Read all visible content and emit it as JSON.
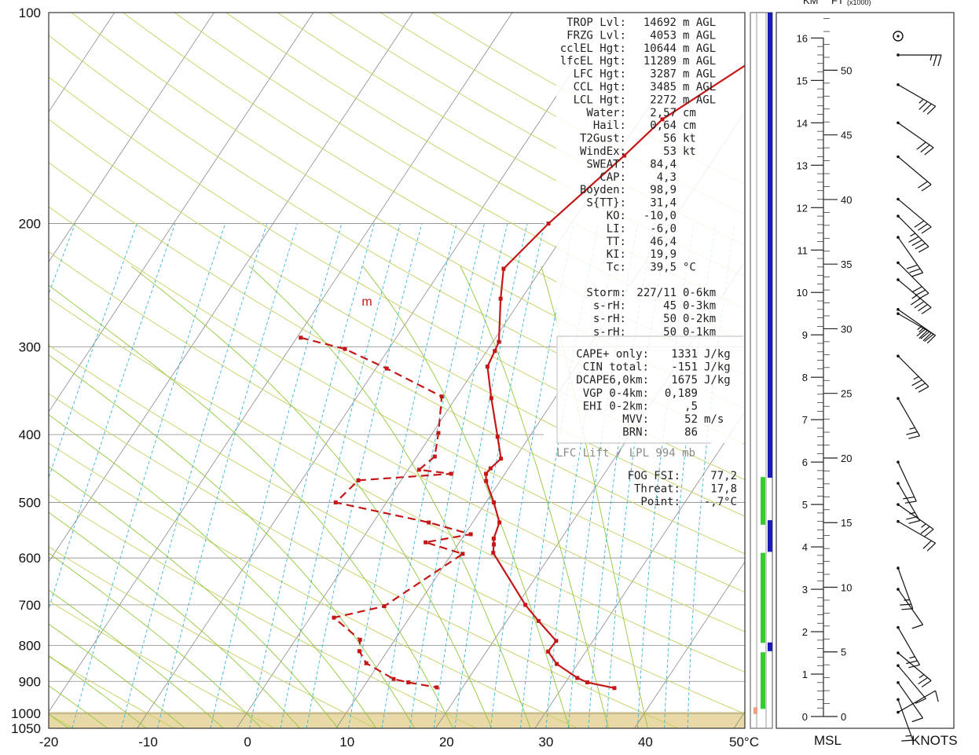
{
  "chart_data": {
    "type": "line",
    "title": "",
    "xlabel": "°C",
    "ylabel": "",
    "x_ticks": [
      -20,
      -10,
      0,
      10,
      20,
      30,
      40,
      50
    ],
    "x_tick_labels": [
      "-20",
      "-10",
      "0",
      "10",
      "20",
      "30",
      "40",
      "50°C"
    ],
    "xlim": [
      -20,
      50
    ],
    "ylim_hpa": [
      1050,
      100
    ],
    "y_scale": "log",
    "p_ticks": [
      100,
      200,
      300,
      400,
      500,
      600,
      700,
      800,
      900,
      1000,
      1050
    ],
    "grid": true,
    "series": [
      {
        "key": "temperature",
        "style": "solid",
        "color": "#c41818",
        "points": [
          [
            11.4,
            100
          ],
          [
            10.8,
            103
          ],
          [
            2.2,
            142
          ],
          [
            0.8,
            160
          ],
          [
            -2.3,
            200
          ],
          [
            -3.8,
            232
          ],
          [
            -2.1,
            256
          ],
          [
            0.6,
            295
          ],
          [
            0.8,
            304
          ],
          [
            1.1,
            320
          ],
          [
            3.6,
            355
          ],
          [
            6.8,
            403
          ],
          [
            8.6,
            433
          ],
          [
            8.2,
            447
          ],
          [
            8.1,
            455
          ],
          [
            8.6,
            466
          ],
          [
            10.8,
            500
          ],
          [
            12.7,
            534
          ],
          [
            13.2,
            563
          ],
          [
            13.6,
            574
          ],
          [
            14.1,
            590
          ],
          [
            20.8,
            700
          ],
          [
            23.2,
            738
          ],
          [
            26.3,
            788
          ],
          [
            26.2,
            816
          ],
          [
            27.9,
            850
          ],
          [
            30.9,
            890
          ],
          [
            32.2,
            903
          ],
          [
            35.3,
            920
          ]
        ]
      },
      {
        "key": "dewpoint",
        "style": "dashed",
        "color": "#c41818",
        "points": [
          [
            -19.6,
            291
          ],
          [
            -14.4,
            302
          ],
          [
            -8.9,
            322
          ],
          [
            -1.5,
            353
          ],
          [
            0.6,
            398
          ],
          [
            1.8,
            430
          ],
          [
            1.1,
            449
          ],
          [
            4.6,
            455
          ],
          [
            -4.3,
            465
          ],
          [
            -5.1,
            500
          ],
          [
            5.6,
            534
          ],
          [
            10.6,
            555
          ],
          [
            6.6,
            570
          ],
          [
            11.1,
            592
          ],
          [
            6.7,
            703
          ],
          [
            2.4,
            730
          ],
          [
            6.5,
            785
          ],
          [
            7.2,
            815
          ],
          [
            8.7,
            848
          ],
          [
            12.5,
            893
          ],
          [
            14.2,
            903
          ],
          [
            17.4,
            918
          ]
        ]
      }
    ],
    "label_m": {
      "text": "m",
      "t": -15.6,
      "p": 262
    },
    "readouts": [
      {
        "label": "TROP Lvl:",
        "value": "14692",
        "unit": "m AGL"
      },
      {
        "label": "FRZG Lvl:",
        "value": "4053",
        "unit": "m AGL"
      },
      {
        "label": "cclEL Hgt:",
        "value": "10644",
        "unit": "m AGL"
      },
      {
        "label": "lfcEL Hgt:",
        "value": "11289",
        "unit": "m AGL"
      },
      {
        "label": "LFC Hgt:",
        "value": "3287",
        "unit": "m AGL"
      },
      {
        "label": "CCL Hgt:",
        "value": "3485",
        "unit": "m AGL"
      },
      {
        "label": "LCL Hgt:",
        "value": "2272",
        "unit": "m AGL"
      },
      {
        "label": "Water:",
        "value": "2,57",
        "unit": "cm"
      },
      {
        "label": "Hail:",
        "value": "0,64",
        "unit": "cm"
      },
      {
        "label": "T2Gust:",
        "value": "56",
        "unit": "kt"
      },
      {
        "label": "WindEx:",
        "value": "53",
        "unit": "kt"
      },
      {
        "label": "SWEAT:",
        "value": "84,4",
        "unit": ""
      },
      {
        "label": "CAP:",
        "value": "4,3",
        "unit": ""
      },
      {
        "label": "Boyden:",
        "value": "98,9",
        "unit": ""
      },
      {
        "label": "S{TT}:",
        "value": "31,4",
        "unit": ""
      },
      {
        "label": "KO:",
        "value": "-10,0",
        "unit": ""
      },
      {
        "label": "LI:",
        "value": "-6,0",
        "unit": ""
      },
      {
        "label": "TT:",
        "value": "46,4",
        "unit": ""
      },
      {
        "label": "KI:",
        "value": "19,9",
        "unit": ""
      },
      {
        "label": "Tc:",
        "value": "39,5",
        "unit": "°C"
      }
    ],
    "storm": [
      {
        "label": "Storm:",
        "value": "227/11",
        "unit": "0-6km"
      },
      {
        "label": "s-rH:",
        "value": "45",
        "unit": "0-3km"
      },
      {
        "label": "s-rH:",
        "value": "50",
        "unit": "0-2km"
      },
      {
        "label": "s-rH:",
        "value": "50",
        "unit": "0-1km"
      }
    ],
    "cape": [
      {
        "label": "CAPE+ only:",
        "value": "1331",
        "unit": "J/kg"
      },
      {
        "label": "CIN total:",
        "value": "-151",
        "unit": "J/kg"
      },
      {
        "label": "DCAPE6,0km:",
        "value": "1675",
        "unit": "J/kg"
      },
      {
        "label": "VGP 0-4km:",
        "value": "0,189",
        "unit": ""
      },
      {
        "label": "EHI 0-2km:",
        "value": ",5",
        "unit": ""
      },
      {
        "label": "MVV:",
        "value": "52",
        "unit": "m/s"
      },
      {
        "label": "BRN:",
        "value": "86",
        "unit": ""
      }
    ],
    "lift_caption": "LFC Lift / LPL 994 mb",
    "fog": [
      {
        "label": "FOG FSI:",
        "value": "77,2",
        "unit": ""
      },
      {
        "label": "Threat:",
        "value": "17,8",
        "unit": ""
      },
      {
        "label": "Point:",
        "value": "-,7°C",
        "unit": ""
      }
    ],
    "bars": [
      {
        "color": "#1a1ab8",
        "p_top": 100,
        "p_bottom": 461
      },
      {
        "color": "#1a1ab8",
        "p_top": 530,
        "p_bottom": 588
      },
      {
        "color": "#1a1ab8",
        "p_top": 792,
        "p_bottom": 815
      },
      {
        "color": "#33cc33",
        "p_top": 460,
        "p_bottom": 538
      },
      {
        "color": "#33cc33",
        "p_top": 590,
        "p_bottom": 793
      },
      {
        "color": "#33cc33",
        "p_top": 818,
        "p_bottom": 985
      },
      {
        "color": "#f0a080",
        "p_top": 980,
        "p_bottom": 1002
      }
    ],
    "height_axis": {
      "unit_labels": [
        "KM",
        "FT"
      ],
      "unit_note": "(x1000)",
      "km_ticks": [
        0,
        1,
        2,
        3,
        4,
        5,
        6,
        7,
        8,
        9,
        10,
        11,
        12,
        13,
        14,
        15,
        16
      ],
      "ft_ticks": [
        0,
        5,
        10,
        15,
        20,
        25,
        30,
        35,
        40,
        45,
        50
      ],
      "km_top": 16.6,
      "bottom_label": "MSL",
      "wind_label": "KNOTS",
      "winds": [
        {
          "km": 15.6,
          "dir": 270,
          "spd": 15
        },
        {
          "km": 14.9,
          "dir": 240,
          "spd": 25
        },
        {
          "km": 14.0,
          "dir": 235,
          "spd": 30
        },
        {
          "km": 13.2,
          "dir": 230,
          "spd": 20
        },
        {
          "km": 12.2,
          "dir": 230,
          "spd": 30
        },
        {
          "km": 11.8,
          "dir": 225,
          "spd": 35
        },
        {
          "km": 11.3,
          "dir": 215,
          "spd": 30
        },
        {
          "km": 10.7,
          "dir": 225,
          "spd": 30
        },
        {
          "km": 10.3,
          "dir": 230,
          "spd": 35
        },
        {
          "km": 9.6,
          "dir": 235,
          "spd": 25
        },
        {
          "km": 9.5,
          "dir": 240,
          "spd": 25
        },
        {
          "km": 8.5,
          "dir": 225,
          "spd": 25
        },
        {
          "km": 7.5,
          "dir": 210,
          "spd": 15
        },
        {
          "km": 6.0,
          "dir": 205,
          "spd": 20
        },
        {
          "km": 5.5,
          "dir": 210,
          "spd": 15
        },
        {
          "km": 5.0,
          "dir": 235,
          "spd": 15
        },
        {
          "km": 4.6,
          "dir": 240,
          "spd": 20
        },
        {
          "km": 3.5,
          "dir": 200,
          "spd": 15
        },
        {
          "km": 3.0,
          "dir": 215,
          "spd": 10
        },
        {
          "km": 2.1,
          "dir": 210,
          "spd": 15
        },
        {
          "km": 1.5,
          "dir": 230,
          "spd": 15
        },
        {
          "km": 1.2,
          "dir": 220,
          "spd": 10
        },
        {
          "km": 0.8,
          "dir": 215,
          "spd": 10
        },
        {
          "km": 0.4,
          "dir": 200,
          "spd": 5
        },
        {
          "km": 0.1,
          "dir": 300,
          "spd": 10
        }
      ]
    }
  }
}
